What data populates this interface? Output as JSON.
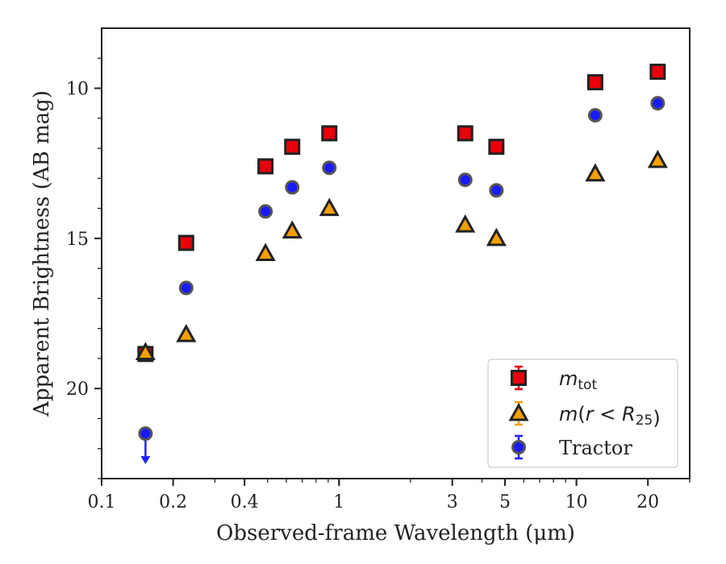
{
  "chart_data": {
    "type": "scatter",
    "xscale": "log",
    "xlim": [
      0.1,
      30
    ],
    "ylim": [
      23,
      8
    ],
    "y_inverted": true,
    "xlabel": "Observed-frame Wavelength (μm)",
    "ylabel": "Apparent Brightness (AB mag)",
    "xticks": [
      {
        "value": 0.1,
        "label": "0.1"
      },
      {
        "value": 0.2,
        "label": "0.2"
      },
      {
        "value": 0.4,
        "label": "0.4"
      },
      {
        "value": 1,
        "label": "1"
      },
      {
        "value": 3,
        "label": "3"
      },
      {
        "value": 5,
        "label": "5"
      },
      {
        "value": 10,
        "label": "10"
      },
      {
        "value": 20,
        "label": "20"
      }
    ],
    "yticks": [
      {
        "value": 10,
        "label": "10"
      },
      {
        "value": 15,
        "label": "15"
      },
      {
        "value": 20,
        "label": "20"
      }
    ],
    "series": [
      {
        "name": "m_tot",
        "marker": "square",
        "color": "#e8000b",
        "x": [
          0.153,
          0.227,
          0.49,
          0.635,
          0.91,
          3.4,
          4.6,
          12.0,
          22.0
        ],
        "y": [
          18.85,
          15.15,
          12.6,
          11.95,
          11.5,
          11.5,
          11.95,
          9.8,
          9.45
        ]
      },
      {
        "name": "m(r < R25)",
        "marker": "triangle",
        "color": "#f5a000",
        "x": [
          0.153,
          0.227,
          0.49,
          0.635,
          0.91,
          3.4,
          4.6,
          12.0,
          22.0
        ],
        "y": [
          18.8,
          18.2,
          15.5,
          14.75,
          14.0,
          14.55,
          15.0,
          12.85,
          12.4
        ]
      },
      {
        "name": "Tractor",
        "marker": "circle",
        "color": "#1a1aff",
        "x": [
          0.153,
          0.227,
          0.49,
          0.635,
          0.91,
          3.4,
          4.6,
          12.0,
          22.0
        ],
        "y": [
          21.5,
          16.65,
          14.1,
          13.3,
          12.65,
          13.05,
          13.4,
          10.9,
          10.5
        ],
        "upper_limit_index": 0
      }
    ],
    "legend": {
      "placement": "lower-right",
      "entries": [
        {
          "parts": [
            {
              "text": "m",
              "style": "italic"
            },
            {
              "text": "tot",
              "style": "sub"
            }
          ]
        },
        {
          "parts": [
            {
              "text": "m",
              "style": "italic"
            },
            {
              "text": "(",
              "style": "normal"
            },
            {
              "text": "r",
              "style": "italic"
            },
            {
              "text": " < ",
              "style": "normal"
            },
            {
              "text": "R",
              "style": "italic"
            },
            {
              "text": "25",
              "style": "sub"
            },
            {
              "text": ")",
              "style": "normal"
            }
          ]
        },
        {
          "parts": [
            {
              "text": "Tractor",
              "style": "serif"
            }
          ]
        }
      ]
    }
  }
}
